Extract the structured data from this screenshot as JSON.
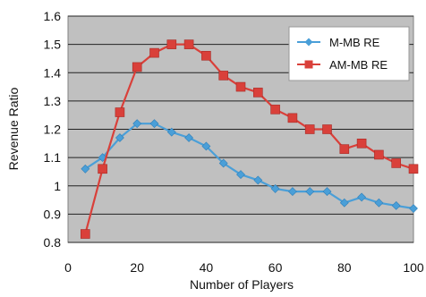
{
  "chart_data": {
    "type": "line",
    "title": "",
    "xlabel": "Number of Players",
    "ylabel": "Revenue Ratio",
    "xlim": [
      0,
      100
    ],
    "ylim": [
      0.8,
      1.6
    ],
    "x_ticks": [
      0,
      20,
      40,
      60,
      80,
      100
    ],
    "y_ticks": [
      0.8,
      0.9,
      1,
      1.1,
      1.2,
      1.3,
      1.4,
      1.5,
      1.6
    ],
    "grid": true,
    "legend": "top-right",
    "x": [
      5,
      10,
      15,
      20,
      25,
      30,
      35,
      40,
      45,
      50,
      55,
      60,
      65,
      70,
      75,
      80,
      85,
      90,
      95,
      100
    ],
    "series": [
      {
        "name": "M-MB RE",
        "color": "#4a9fd8",
        "marker": "diamond",
        "values": [
          1.06,
          1.1,
          1.17,
          1.22,
          1.22,
          1.19,
          1.17,
          1.14,
          1.08,
          1.04,
          1.02,
          0.99,
          0.98,
          0.98,
          0.98,
          0.94,
          0.96,
          0.94,
          0.93,
          0.92
        ]
      },
      {
        "name": "AM-MB RE",
        "color": "#d9403a",
        "marker": "square",
        "values": [
          0.83,
          1.06,
          1.26,
          1.42,
          1.47,
          1.5,
          1.5,
          1.46,
          1.39,
          1.35,
          1.33,
          1.27,
          1.24,
          1.2,
          1.2,
          1.13,
          1.15,
          1.11,
          1.08,
          1.06
        ]
      }
    ]
  }
}
